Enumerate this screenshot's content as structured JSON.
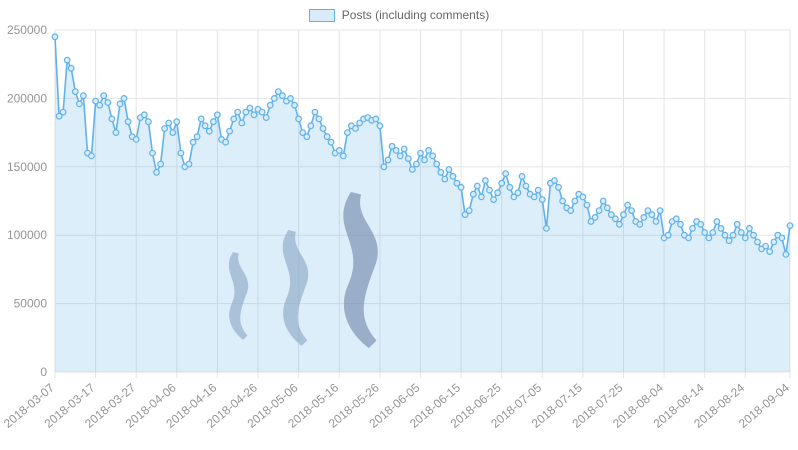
{
  "legend": {
    "label": "Posts (including comments)"
  },
  "colors": {
    "line": "#61b2ea",
    "area": "rgba(97,178,234,0.22)",
    "point_fill": "#d9ecfa",
    "grid": "#e5e5e5",
    "axis_text": "#959595",
    "watermark_light": "#8da7c7",
    "watermark_dark": "#7288ad"
  },
  "chart_data": {
    "type": "line",
    "title": "",
    "series_name": "Posts (including comments)",
    "legend_position": "top",
    "grid": true,
    "start_date": "2018-03-07",
    "end_date": "2018-09-04",
    "ylim": [
      0,
      250000
    ],
    "y_ticks": [
      0,
      50000,
      100000,
      150000,
      200000,
      250000
    ],
    "x_tick_labels": [
      "2018-03-07",
      "2018-03-17",
      "2018-03-27",
      "2018-04-06",
      "2018-04-16",
      "2018-04-26",
      "2018-05-06",
      "2018-05-16",
      "2018-05-26",
      "2018-06-05",
      "2018-06-15",
      "2018-06-25",
      "2018-07-05",
      "2018-07-15",
      "2018-07-25",
      "2018-08-04",
      "2018-08-14",
      "2018-08-24",
      "2018-09-04"
    ],
    "x_tick_indices": [
      0,
      10,
      20,
      30,
      40,
      50,
      60,
      70,
      80,
      90,
      100,
      110,
      120,
      130,
      140,
      150,
      160,
      170,
      181
    ],
    "values": [
      245000,
      187000,
      190000,
      228000,
      222000,
      205000,
      196000,
      202000,
      160000,
      158000,
      198000,
      195000,
      202000,
      197000,
      185000,
      175000,
      196000,
      200000,
      183000,
      172000,
      170000,
      186000,
      188000,
      183000,
      160000,
      146000,
      152000,
      178000,
      182000,
      175000,
      183000,
      160000,
      150000,
      152000,
      168000,
      172000,
      185000,
      180000,
      176000,
      183000,
      188000,
      170000,
      168000,
      176000,
      185000,
      190000,
      182000,
      190000,
      193000,
      188000,
      192000,
      190000,
      186000,
      195000,
      200000,
      205000,
      202000,
      198000,
      200000,
      195000,
      185000,
      175000,
      172000,
      180000,
      190000,
      185000,
      178000,
      172000,
      168000,
      160000,
      162000,
      158000,
      175000,
      180000,
      178000,
      182000,
      185000,
      186000,
      184000,
      185000,
      180000,
      150000,
      155000,
      165000,
      162000,
      158000,
      163000,
      156000,
      148000,
      152000,
      160000,
      155000,
      162000,
      158000,
      152000,
      146000,
      141000,
      148000,
      143000,
      138000,
      135000,
      115000,
      118000,
      130000,
      136000,
      128000,
      140000,
      133000,
      126000,
      131000,
      138000,
      145000,
      135000,
      128000,
      131000,
      143000,
      136000,
      130000,
      128000,
      133000,
      126000,
      105000,
      138000,
      140000,
      135000,
      125000,
      120000,
      118000,
      125000,
      130000,
      128000,
      122000,
      110000,
      113000,
      118000,
      125000,
      120000,
      115000,
      112000,
      108000,
      115000,
      122000,
      118000,
      110000,
      108000,
      113000,
      118000,
      115000,
      110000,
      118000,
      98000,
      100000,
      110000,
      112000,
      108000,
      100000,
      98000,
      105000,
      110000,
      108000,
      102000,
      98000,
      102000,
      110000,
      105000,
      100000,
      96000,
      100000,
      108000,
      102000,
      98000,
      105000,
      100000,
      95000,
      90000,
      92000,
      88000,
      95000,
      100000,
      98000,
      86000,
      107000
    ]
  }
}
